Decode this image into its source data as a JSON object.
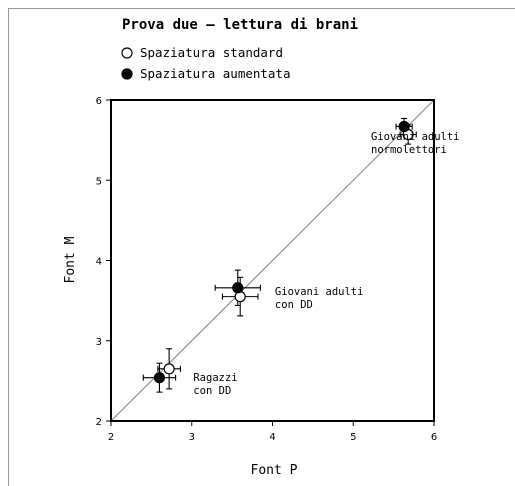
{
  "chart_data": {
    "type": "scatter",
    "title": "Prova due – lettura di brani",
    "xlabel": "Font P",
    "ylabel": "Font M",
    "xlim": [
      2,
      6
    ],
    "ylim": [
      2,
      6
    ],
    "xticks": [
      "2",
      "3",
      "4",
      "5",
      "6"
    ],
    "yticks": [
      "2",
      "3",
      "4",
      "5",
      "6"
    ],
    "grid": false,
    "legend_position": "top-left",
    "identity_line": true,
    "series": [
      {
        "name": "Spaziatura standard",
        "marker": "open-circle",
        "color": "#ffffff",
        "points": [
          {
            "x": 2.72,
            "y": 2.65,
            "xerr": 0.14,
            "yerr": 0.25
          },
          {
            "x": 3.6,
            "y": 3.55,
            "xerr": 0.22,
            "yerr": 0.24
          },
          {
            "x": 5.68,
            "y": 5.57,
            "xerr": 0.1,
            "yerr": 0.12
          }
        ]
      },
      {
        "name": "Spaziatura aumentata",
        "marker": "filled-circle",
        "color": "#0a0a05",
        "points": [
          {
            "x": 2.6,
            "y": 2.54,
            "xerr": 0.2,
            "yerr": 0.18
          },
          {
            "x": 3.57,
            "y": 3.66,
            "xerr": 0.28,
            "yerr": 0.22
          },
          {
            "x": 5.63,
            "y": 5.67,
            "xerr": 0.1,
            "yerr": 0.1
          }
        ]
      }
    ],
    "annotations": [
      {
        "lines": [
          "Giovani adulti",
          "normolettori"
        ],
        "x": 5.22,
        "y": 5.5
      },
      {
        "lines": [
          "Giovani adulti",
          "con DD"
        ],
        "x": 4.03,
        "y": 3.57
      },
      {
        "lines": [
          "Ragazzi",
          "con DD"
        ],
        "x": 3.02,
        "y": 2.5
      }
    ]
  }
}
